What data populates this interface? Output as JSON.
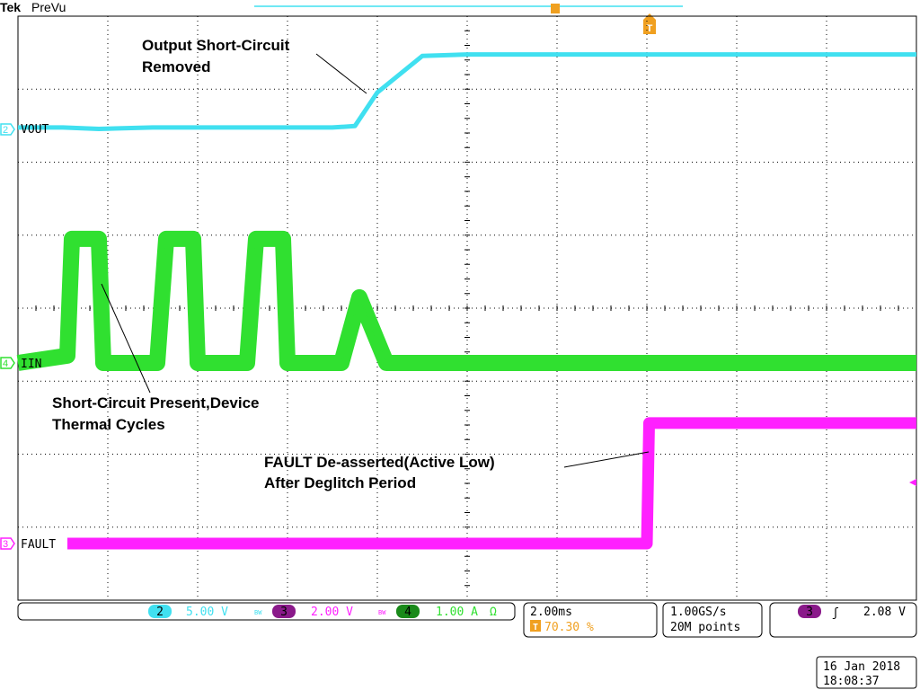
{
  "header": {
    "brand": "Tek",
    "mode": "PreVu"
  },
  "channels": [
    {
      "id": "2",
      "label": "VOUT",
      "color": "#40e0f0"
    },
    {
      "id": "4",
      "label": "IIN",
      "color": "#30e030"
    },
    {
      "id": "3",
      "label": "FAULT",
      "color": "#ff20ff"
    }
  ],
  "annotations": {
    "vout_line1": "Output Short-Circuit",
    "vout_line2": "Removed",
    "iin_line1": "Short-Circuit Present,Device",
    "iin_line2": "Thermal Cycles",
    "fault_line1": "FAULT De-asserted(Active Low)",
    "fault_line2": "After Deglitch Period"
  },
  "status_bar": {
    "ch2_num": "2",
    "ch2_scale": "5.00 V",
    "ch3_num": "3",
    "ch3_scale": "2.00 V",
    "ch4_num": "4",
    "ch4_scale": "1.00 A",
    "ch4_imp": "Ω",
    "bw_mark": "BW",
    "timebase": "2.00ms",
    "trigger_pos": "70.30 %",
    "trigger_marker": "T",
    "sample_rate": "1.00GS/s",
    "record_length": "20M points",
    "trig_ch": "3",
    "trig_slope": "ʃ",
    "trig_level": "2.08 V"
  },
  "datetime": {
    "date": "16 Jan  2018",
    "time": "18:08:37"
  },
  "colors": {
    "vout": "#40e0f0",
    "iin": "#30e030",
    "fault": "#ff20ff",
    "trigger": "#f0a020",
    "grid": "#000000"
  },
  "chart_data": {
    "type": "line",
    "title": "",
    "x_unit": "ms",
    "x_divisions": 10,
    "x_per_div": 2.0,
    "xlim": [
      0,
      20
    ],
    "series": [
      {
        "name": "VOUT",
        "channel": "2",
        "volts_per_div": 5.0,
        "x": [
          0,
          1.0,
          1.8,
          3.0,
          5.0,
          7.0,
          7.5,
          8.0,
          9.0,
          10,
          20
        ],
        "values": [
          0.1,
          0.1,
          0.0,
          0.1,
          0.1,
          0.1,
          0.2,
          2.5,
          5.0,
          5.1,
          5.1
        ]
      },
      {
        "name": "IIN",
        "channel": "4",
        "amps_per_div": 1.0,
        "x": [
          0,
          1.1,
          1.2,
          1.8,
          1.9,
          3.1,
          3.3,
          3.9,
          4.0,
          5.1,
          5.3,
          5.9,
          6.0,
          7.2,
          7.6,
          8.2,
          20
        ],
        "values": [
          0.0,
          0.1,
          1.7,
          1.7,
          0.0,
          0.0,
          1.7,
          1.7,
          0.0,
          0.0,
          1.7,
          1.7,
          0.0,
          0.0,
          0.9,
          0.0,
          0.0
        ],
        "ylim": [
          -0.3,
          1.9
        ]
      },
      {
        "name": "FAULT",
        "channel": "3",
        "volts_per_div": 2.0,
        "x": [
          1.1,
          14.0,
          14.05,
          20
        ],
        "values": [
          0.0,
          0.0,
          3.3,
          3.3
        ]
      }
    ]
  }
}
